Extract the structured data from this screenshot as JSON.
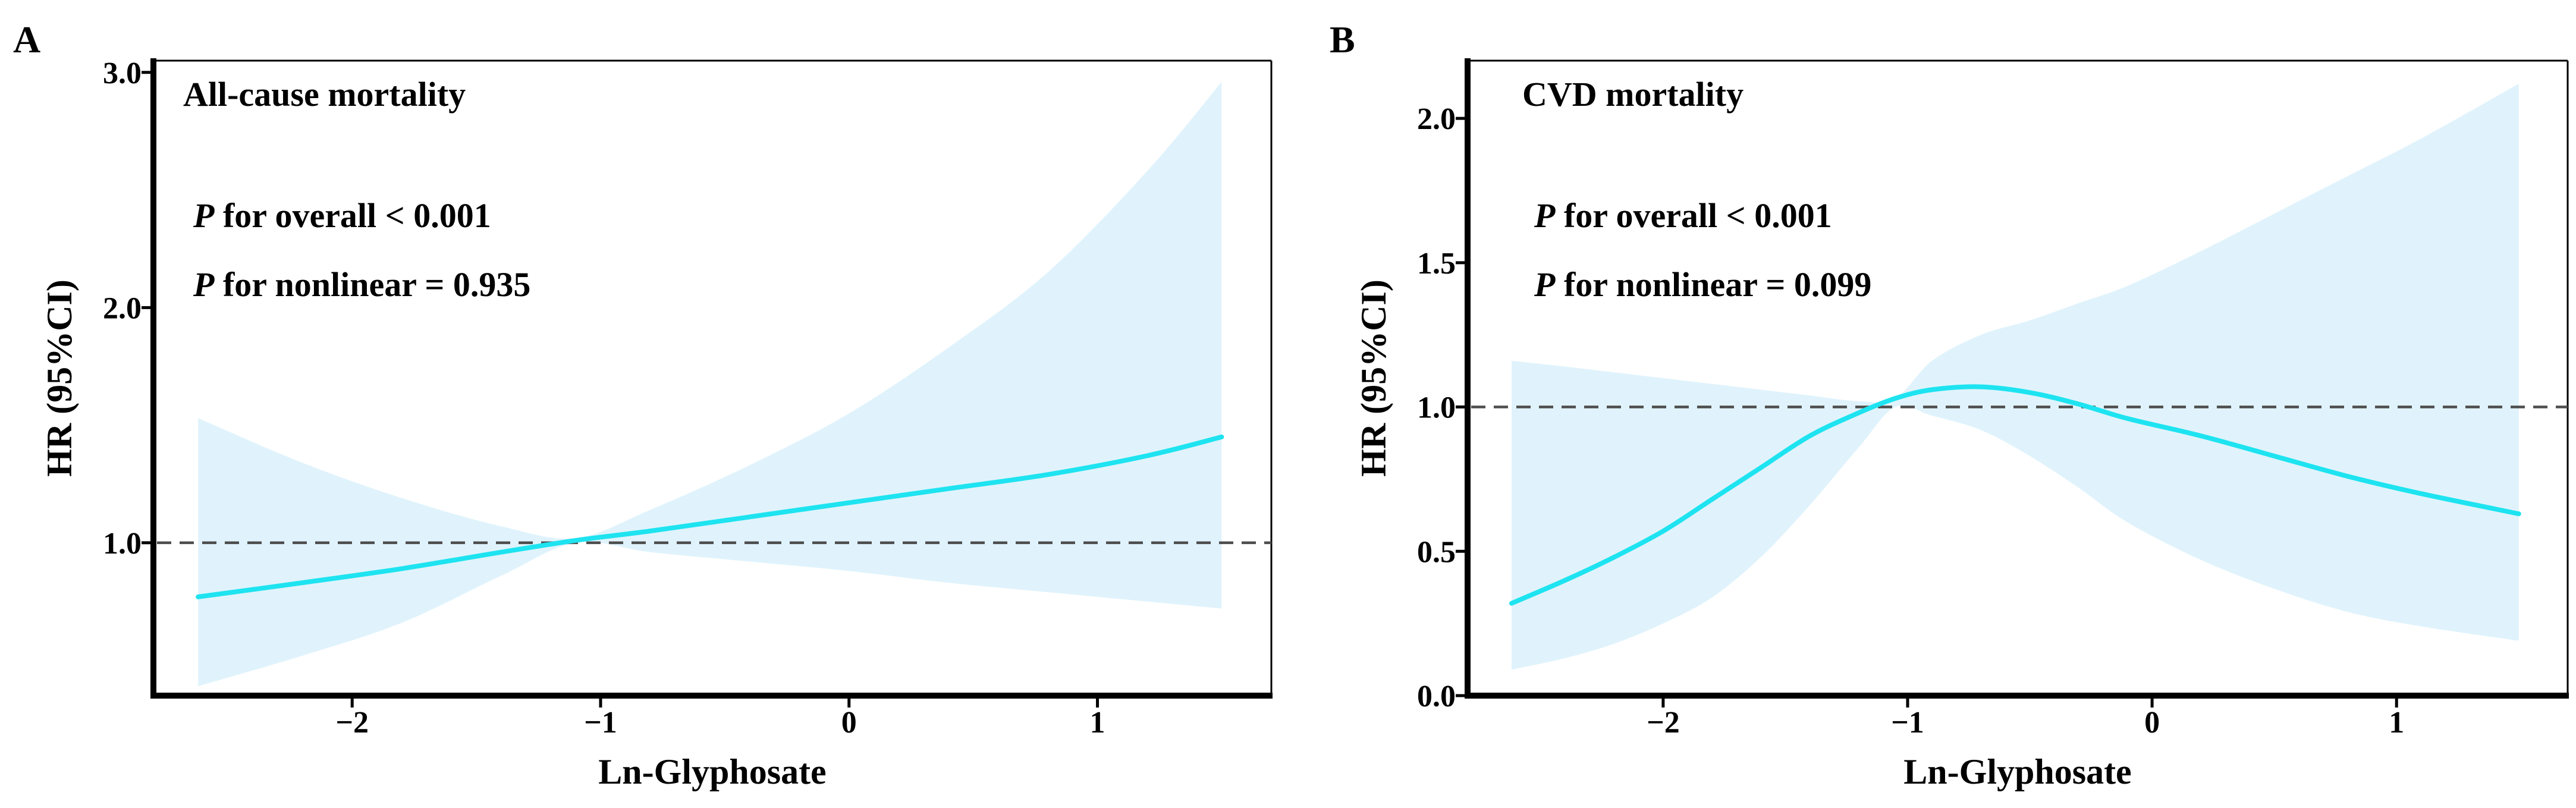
{
  "colors": {
    "curve": "#1ee3f0",
    "band": "#e0f3fc",
    "reference_line": "#4d4d4d"
  },
  "chart_data": [
    {
      "type": "line",
      "panel_label": "A",
      "title": "All-cause mortality",
      "annotations": {
        "p_symbol": "P",
        "overall_text": " for overall < 0.001",
        "nonlinear_text": " for nonlinear = 0.935"
      },
      "xlabel": "Ln-Glyphosate",
      "ylabel": "HR (95%CI)",
      "xlim": [
        -2.8,
        1.7
      ],
      "ylim": [
        0.35,
        3.05
      ],
      "xticks": [
        -2,
        -1,
        0,
        1
      ],
      "xtick_labels": [
        "−2",
        "−1",
        "0",
        "1"
      ],
      "yticks": [
        1.0,
        2.0,
        3.0
      ],
      "ytick_labels": [
        "1.0",
        "2.0",
        "3.0"
      ],
      "reference_y": 1.0,
      "series": [
        {
          "name": "HR",
          "x": [
            -2.62,
            -2.2,
            -1.8,
            -1.4,
            -1.1,
            -0.8,
            -0.4,
            0,
            0.4,
            0.8,
            1.2,
            1.5
          ],
          "y": [
            0.77,
            0.83,
            0.89,
            0.96,
            1.01,
            1.05,
            1.11,
            1.17,
            1.23,
            1.29,
            1.37,
            1.45
          ],
          "lower": [
            0.39,
            0.52,
            0.66,
            0.86,
            1.0,
            0.96,
            0.92,
            0.88,
            0.83,
            0.79,
            0.75,
            0.72
          ],
          "upper": [
            1.53,
            1.34,
            1.19,
            1.07,
            1.02,
            1.14,
            1.33,
            1.55,
            1.83,
            2.15,
            2.58,
            2.96
          ]
        }
      ]
    },
    {
      "type": "line",
      "panel_label": "B",
      "title": "CVD mortality",
      "annotations": {
        "p_symbol": "P",
        "overall_text": " for overall < 0.001",
        "nonlinear_text": " for nonlinear = 0.099"
      },
      "xlabel": "Ln-Glyphosate",
      "ylabel": "HR (95%CI)",
      "xlim": [
        -2.8,
        1.7
      ],
      "ylim": [
        0.0,
        2.2
      ],
      "xticks": [
        -2,
        -1,
        0,
        1
      ],
      "xtick_labels": [
        "−2",
        "−1",
        "0",
        "1"
      ],
      "yticks": [
        0.0,
        0.5,
        1.0,
        1.5,
        2.0
      ],
      "ytick_labels": [
        "0.0",
        "0.5",
        "1.0",
        "1.5",
        "2.0"
      ],
      "reference_y": 1.0,
      "series": [
        {
          "name": "HR",
          "x": [
            -2.62,
            -2.4,
            -2.2,
            -2.0,
            -1.8,
            -1.6,
            -1.4,
            -1.2,
            -1.05,
            -0.9,
            -0.7,
            -0.5,
            -0.3,
            -0.1,
            0.2,
            0.5,
            0.8,
            1.1,
            1.5
          ],
          "y": [
            0.32,
            0.4,
            0.48,
            0.57,
            0.68,
            0.79,
            0.9,
            0.98,
            1.03,
            1.06,
            1.07,
            1.05,
            1.01,
            0.96,
            0.9,
            0.83,
            0.76,
            0.7,
            0.63
          ],
          "lower": [
            0.09,
            0.13,
            0.18,
            0.25,
            0.34,
            0.48,
            0.66,
            0.86,
            1.0,
            0.97,
            0.92,
            0.83,
            0.72,
            0.6,
            0.47,
            0.37,
            0.29,
            0.24,
            0.19
          ],
          "upper": [
            1.16,
            1.14,
            1.12,
            1.1,
            1.08,
            1.06,
            1.04,
            1.02,
            1.03,
            1.16,
            1.25,
            1.3,
            1.36,
            1.42,
            1.54,
            1.67,
            1.8,
            1.93,
            2.12
          ]
        }
      ]
    }
  ]
}
